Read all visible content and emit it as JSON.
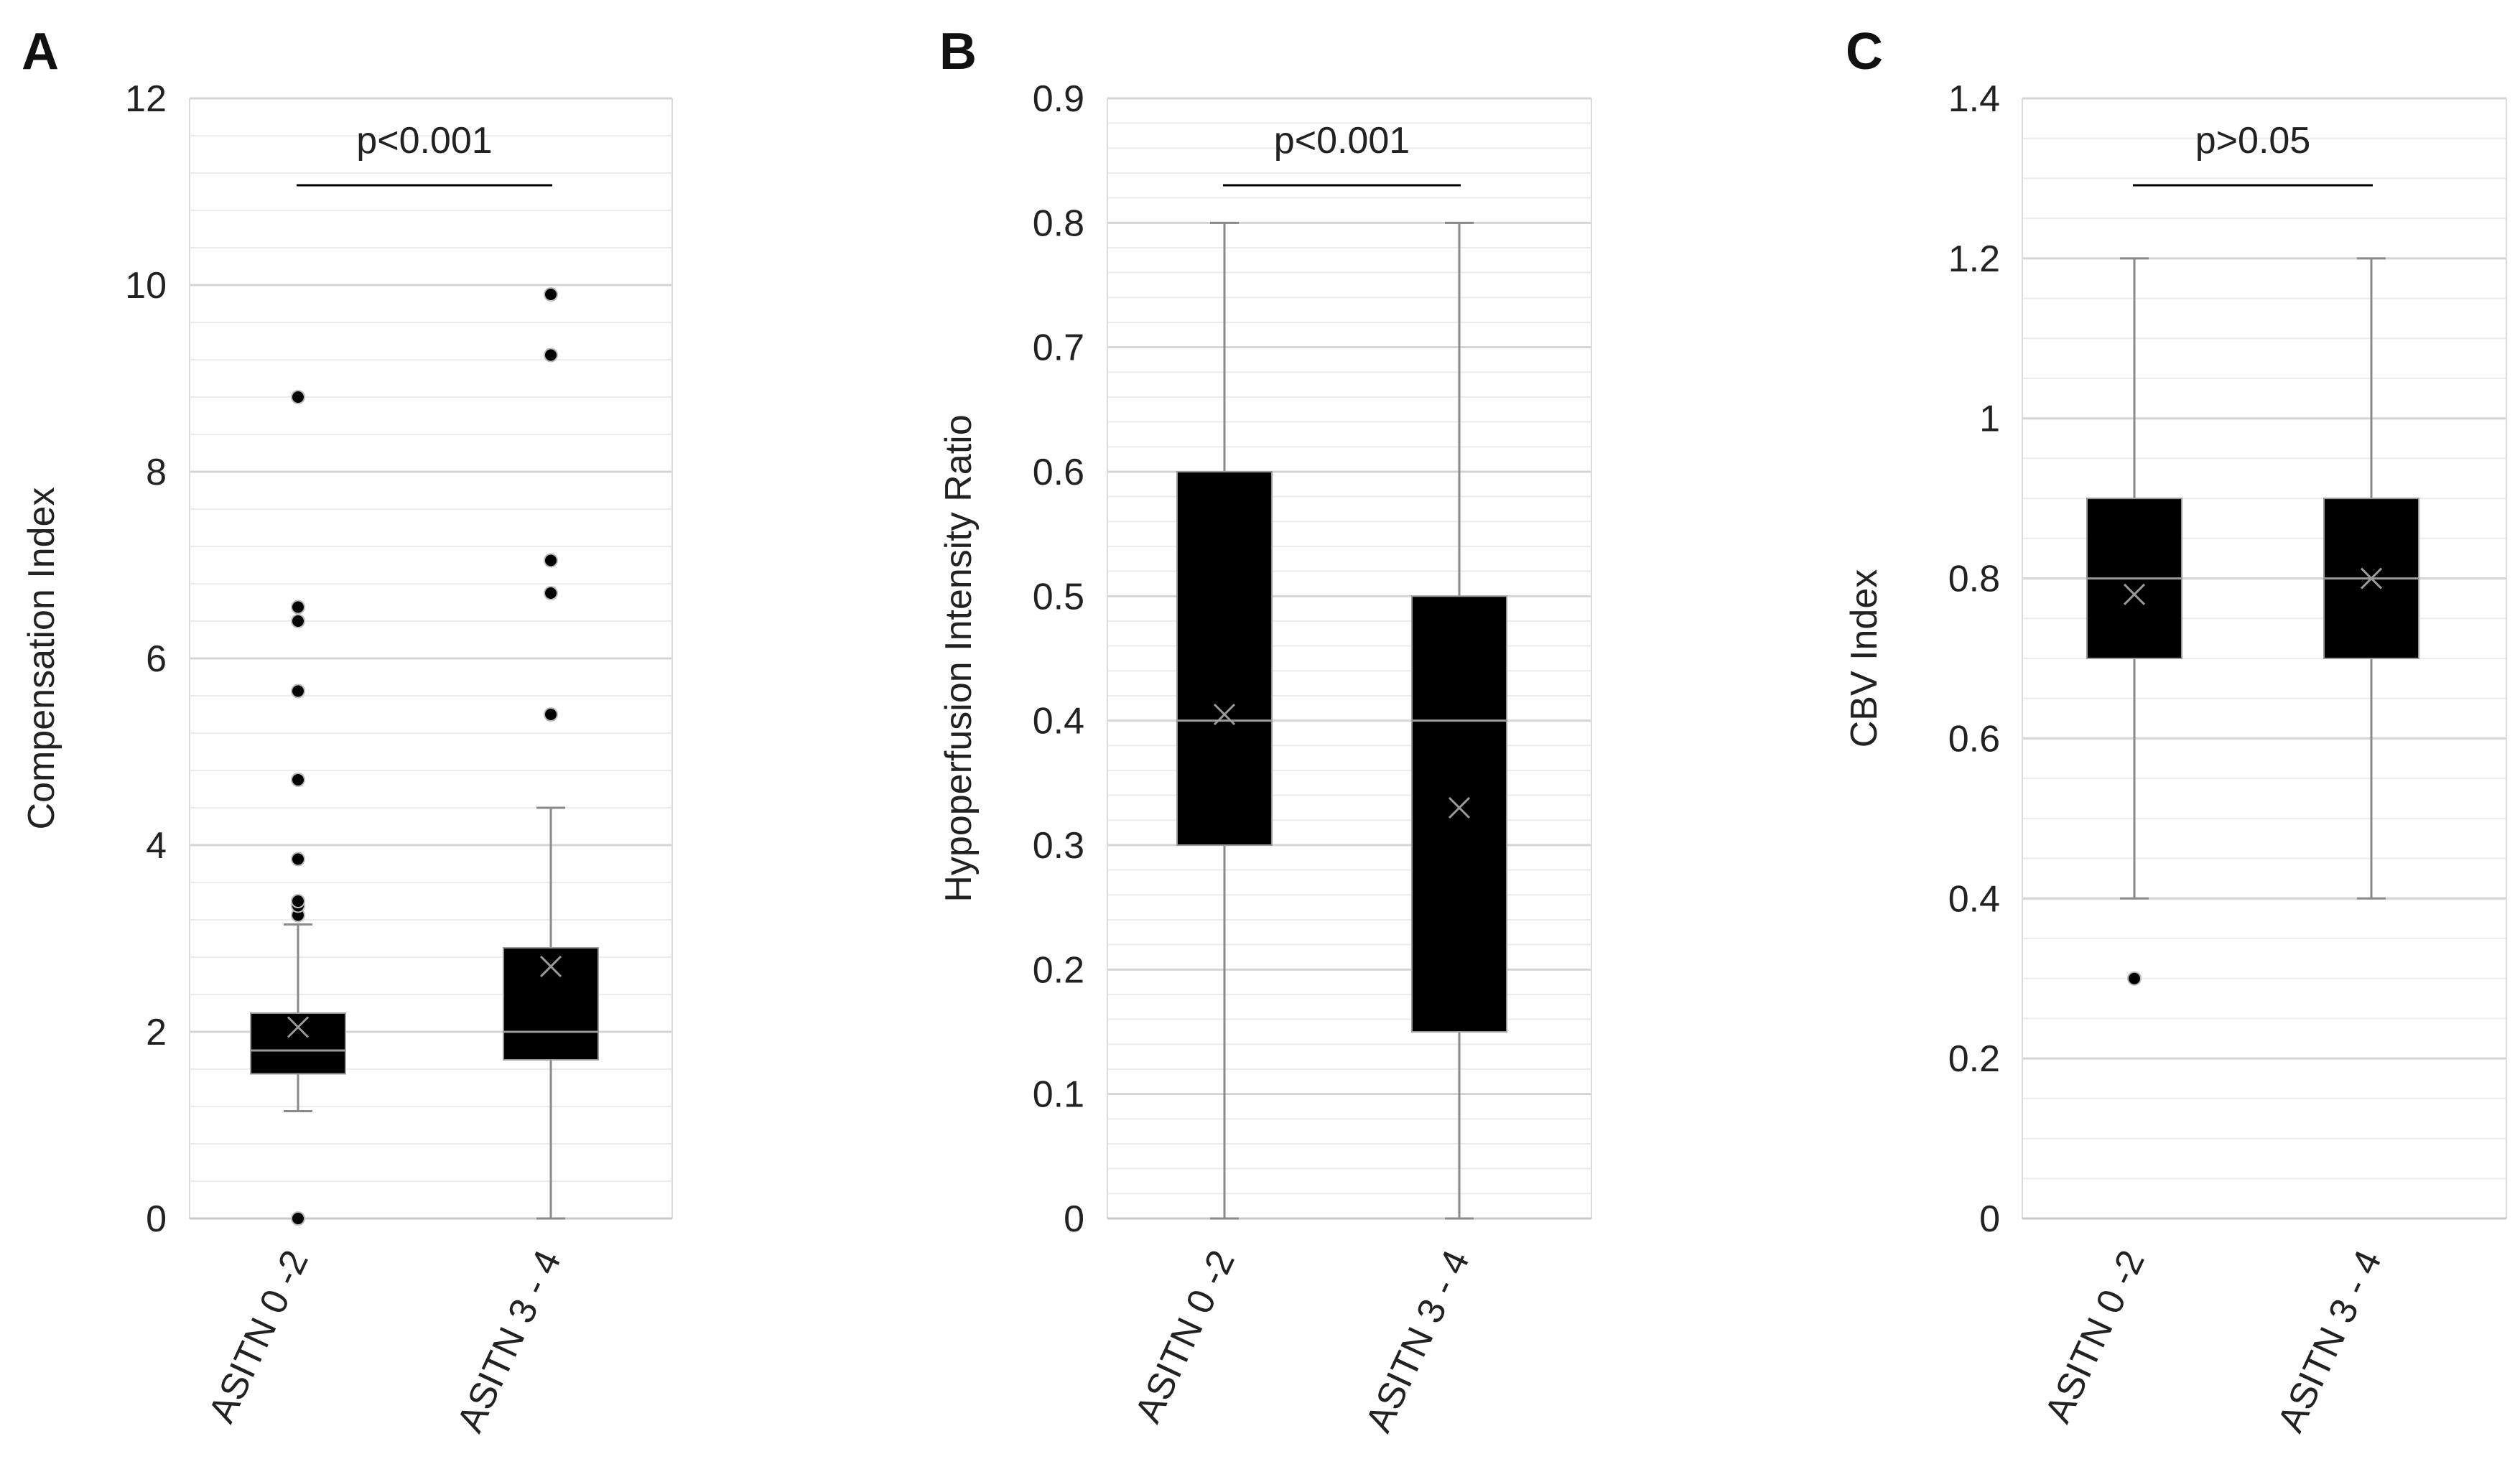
{
  "chart_data": [
    {
      "type": "box",
      "panel": "A",
      "ylabel": "Compensation Index",
      "ylim": [
        0,
        12
      ],
      "yticks": [
        0,
        2,
        4,
        6,
        8,
        10,
        12
      ],
      "minor_step": 0.4,
      "categories": [
        "ASITN 0 -2",
        "ASITN 3 - 4"
      ],
      "boxes": [
        {
          "whisker_low": 1.15,
          "q1": 1.55,
          "median": 1.8,
          "q3": 2.2,
          "whisker_high": 3.15,
          "mean": 2.05,
          "outliers": [
            0,
            3.25,
            3.35,
            3.4,
            3.85,
            4.7,
            5.65,
            6.4,
            6.55,
            8.8
          ]
        },
        {
          "whisker_low": 0,
          "q1": 1.7,
          "median": 2.0,
          "q3": 2.9,
          "whisker_high": 4.4,
          "mean": 2.7,
          "outliers": [
            5.4,
            6.7,
            7.05,
            9.25,
            9.9
          ]
        }
      ],
      "annotation": "p<0.001"
    },
    {
      "type": "box",
      "panel": "B",
      "ylabel": "Hypoperfusion Intensity Ratio",
      "ylim": [
        0,
        0.9
      ],
      "yticks": [
        "0",
        "0.1",
        "0.2",
        "0.3",
        "0.4",
        "0.5",
        "0.6",
        "0.7",
        "0.8",
        "0.9"
      ],
      "minor_step": 0.02,
      "categories": [
        "ASITN 0 -2",
        "ASITN 3 - 4"
      ],
      "boxes": [
        {
          "whisker_low": 0,
          "q1": 0.3,
          "median": 0.4,
          "q3": 0.6,
          "whisker_high": 0.8,
          "mean": 0.405,
          "outliers": []
        },
        {
          "whisker_low": 0,
          "q1": 0.15,
          "median": 0.4,
          "q3": 0.5,
          "whisker_high": 0.8,
          "mean": 0.33,
          "outliers": []
        }
      ],
      "annotation": "p<0.001"
    },
    {
      "type": "box",
      "panel": "C",
      "ylabel": "CBV Index",
      "ylim": [
        0,
        1.4
      ],
      "yticks": [
        "0",
        "0.2",
        "0.4",
        "0.6",
        "0.8",
        "1",
        "1.2",
        "1.4"
      ],
      "minor_step": 0.05,
      "categories": [
        "ASITN 0 -2",
        "ASITN 3 - 4"
      ],
      "boxes": [
        {
          "whisker_low": 0.4,
          "q1": 0.7,
          "median": 0.8,
          "q3": 0.9,
          "whisker_high": 1.2,
          "mean": 0.78,
          "outliers": [
            0.3
          ]
        },
        {
          "whisker_low": 0.4,
          "q1": 0.7,
          "median": 0.8,
          "q3": 0.9,
          "whisker_high": 1.2,
          "mean": 0.8,
          "outliers": []
        }
      ],
      "annotation": "p>0.05"
    }
  ]
}
